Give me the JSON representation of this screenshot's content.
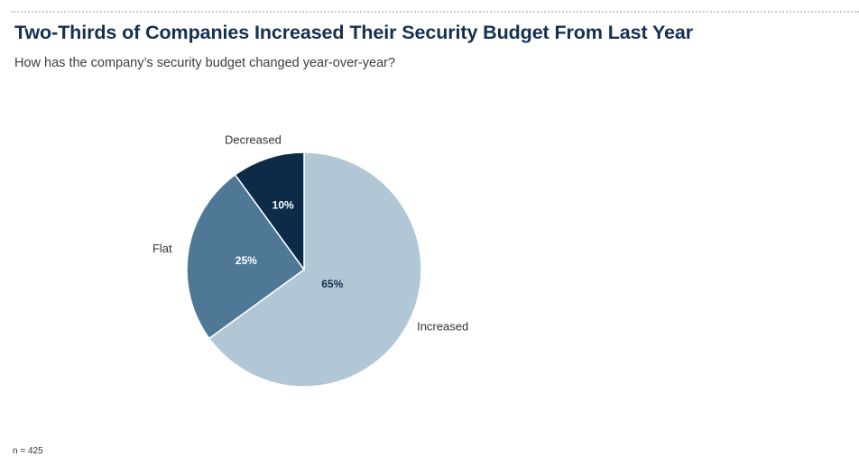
{
  "header": {
    "title": "Two-Thirds of Companies Increased Their Security Budget From Last Year",
    "subtitle": "How has the company’s security budget changed year-over-year?"
  },
  "footer": {
    "note": "n = 425"
  },
  "colors": {
    "increased": "#b2c7d5",
    "flat": "#4e7896",
    "decreased": "#0d2a49",
    "label_dark": "#14304f",
    "label_light": "#ffffff",
    "category_label": "#333333"
  },
  "chart_data": {
    "type": "pie",
    "title": "Two-Thirds of Companies Increased Their Security Budget From Last Year",
    "subtitle": "How has the company’s security budget changed year-over-year?",
    "start_angle_deg": 0,
    "direction": "clockwise",
    "slices": [
      {
        "category": "Increased",
        "value": 65,
        "label": "65%",
        "color": "#b2c7d5",
        "label_color": "#14304f"
      },
      {
        "category": "Flat",
        "value": 25,
        "label": "25%",
        "color": "#4e7896",
        "label_color": "#ffffff"
      },
      {
        "category": "Decreased",
        "value": 10,
        "label": "10%",
        "color": "#0d2a49",
        "label_color": "#ffffff"
      }
    ],
    "note": "n = 425"
  }
}
